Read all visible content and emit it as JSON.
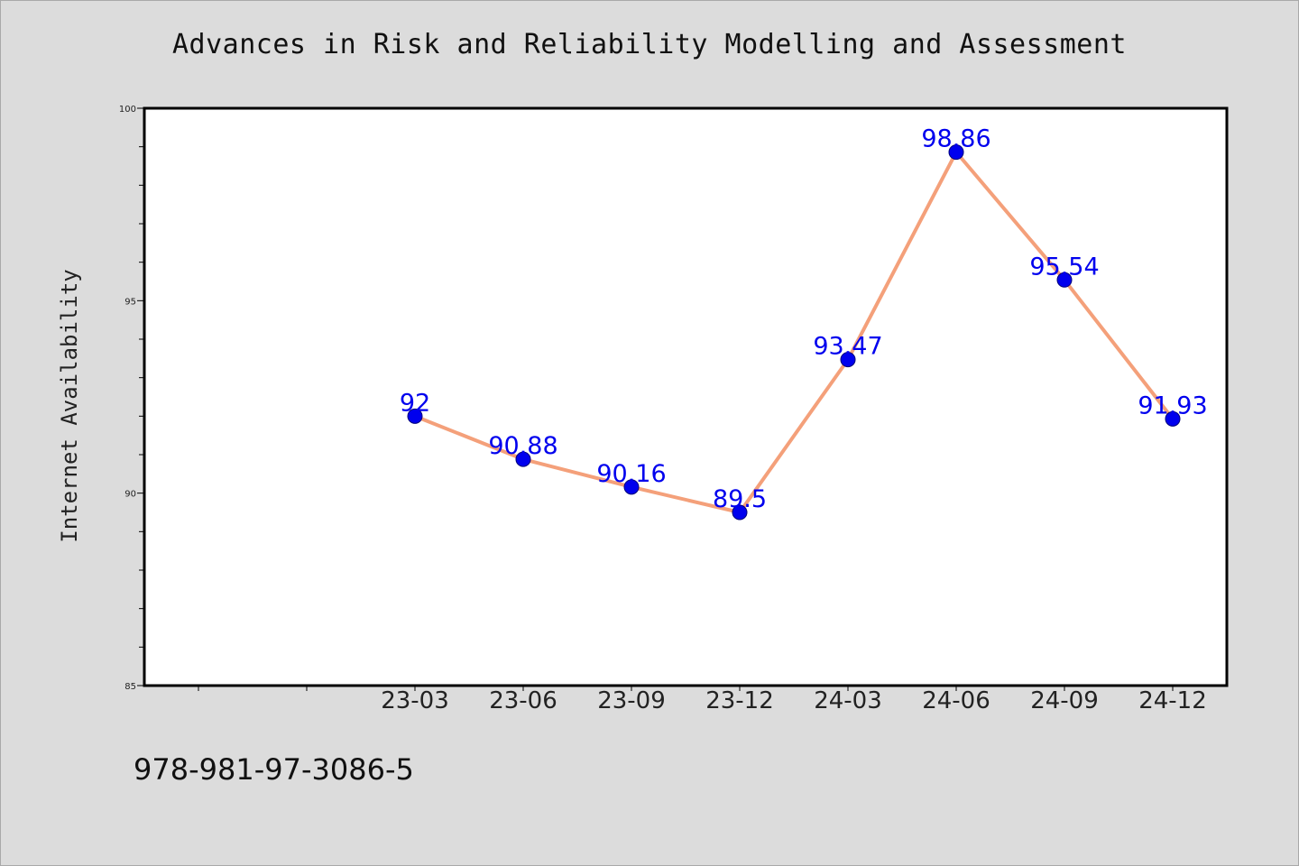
{
  "header": {
    "title": "Advances in Risk and Reliability Modelling and Assessment"
  },
  "footer": {
    "isbn": "978-981-97-3086-5"
  },
  "colors": {
    "background": "#dcdcdc",
    "plot_background": "#ffffff",
    "line": "#f4a07a",
    "marker": "#0000ee",
    "data_label": "#0000ee"
  },
  "chart_data": {
    "type": "line",
    "title": "Advances in Risk and Reliability Modelling and Assessment",
    "xlabel": "",
    "ylabel": "Internet Availability",
    "ylim": [
      85,
      100
    ],
    "y_ticks": [
      "85",
      "90",
      "95",
      "100"
    ],
    "x_ticks": [
      "23-03",
      "23-06",
      "23-09",
      "23-12",
      "24-03",
      "24-06",
      "24-09",
      "24-12"
    ],
    "categories": [
      "23-03",
      "23-06",
      "23-09",
      "23-12",
      "24-03",
      "24-06",
      "24-09",
      "24-12"
    ],
    "values": [
      92,
      90.88,
      90.16,
      89.5,
      93.47,
      98.86,
      95.54,
      91.93
    ],
    "data_labels": [
      "92",
      "90.88",
      "90.16",
      "89.5",
      "93.47",
      "98.86",
      "95.54",
      "91.93"
    ],
    "grid": false,
    "legend": "none"
  }
}
